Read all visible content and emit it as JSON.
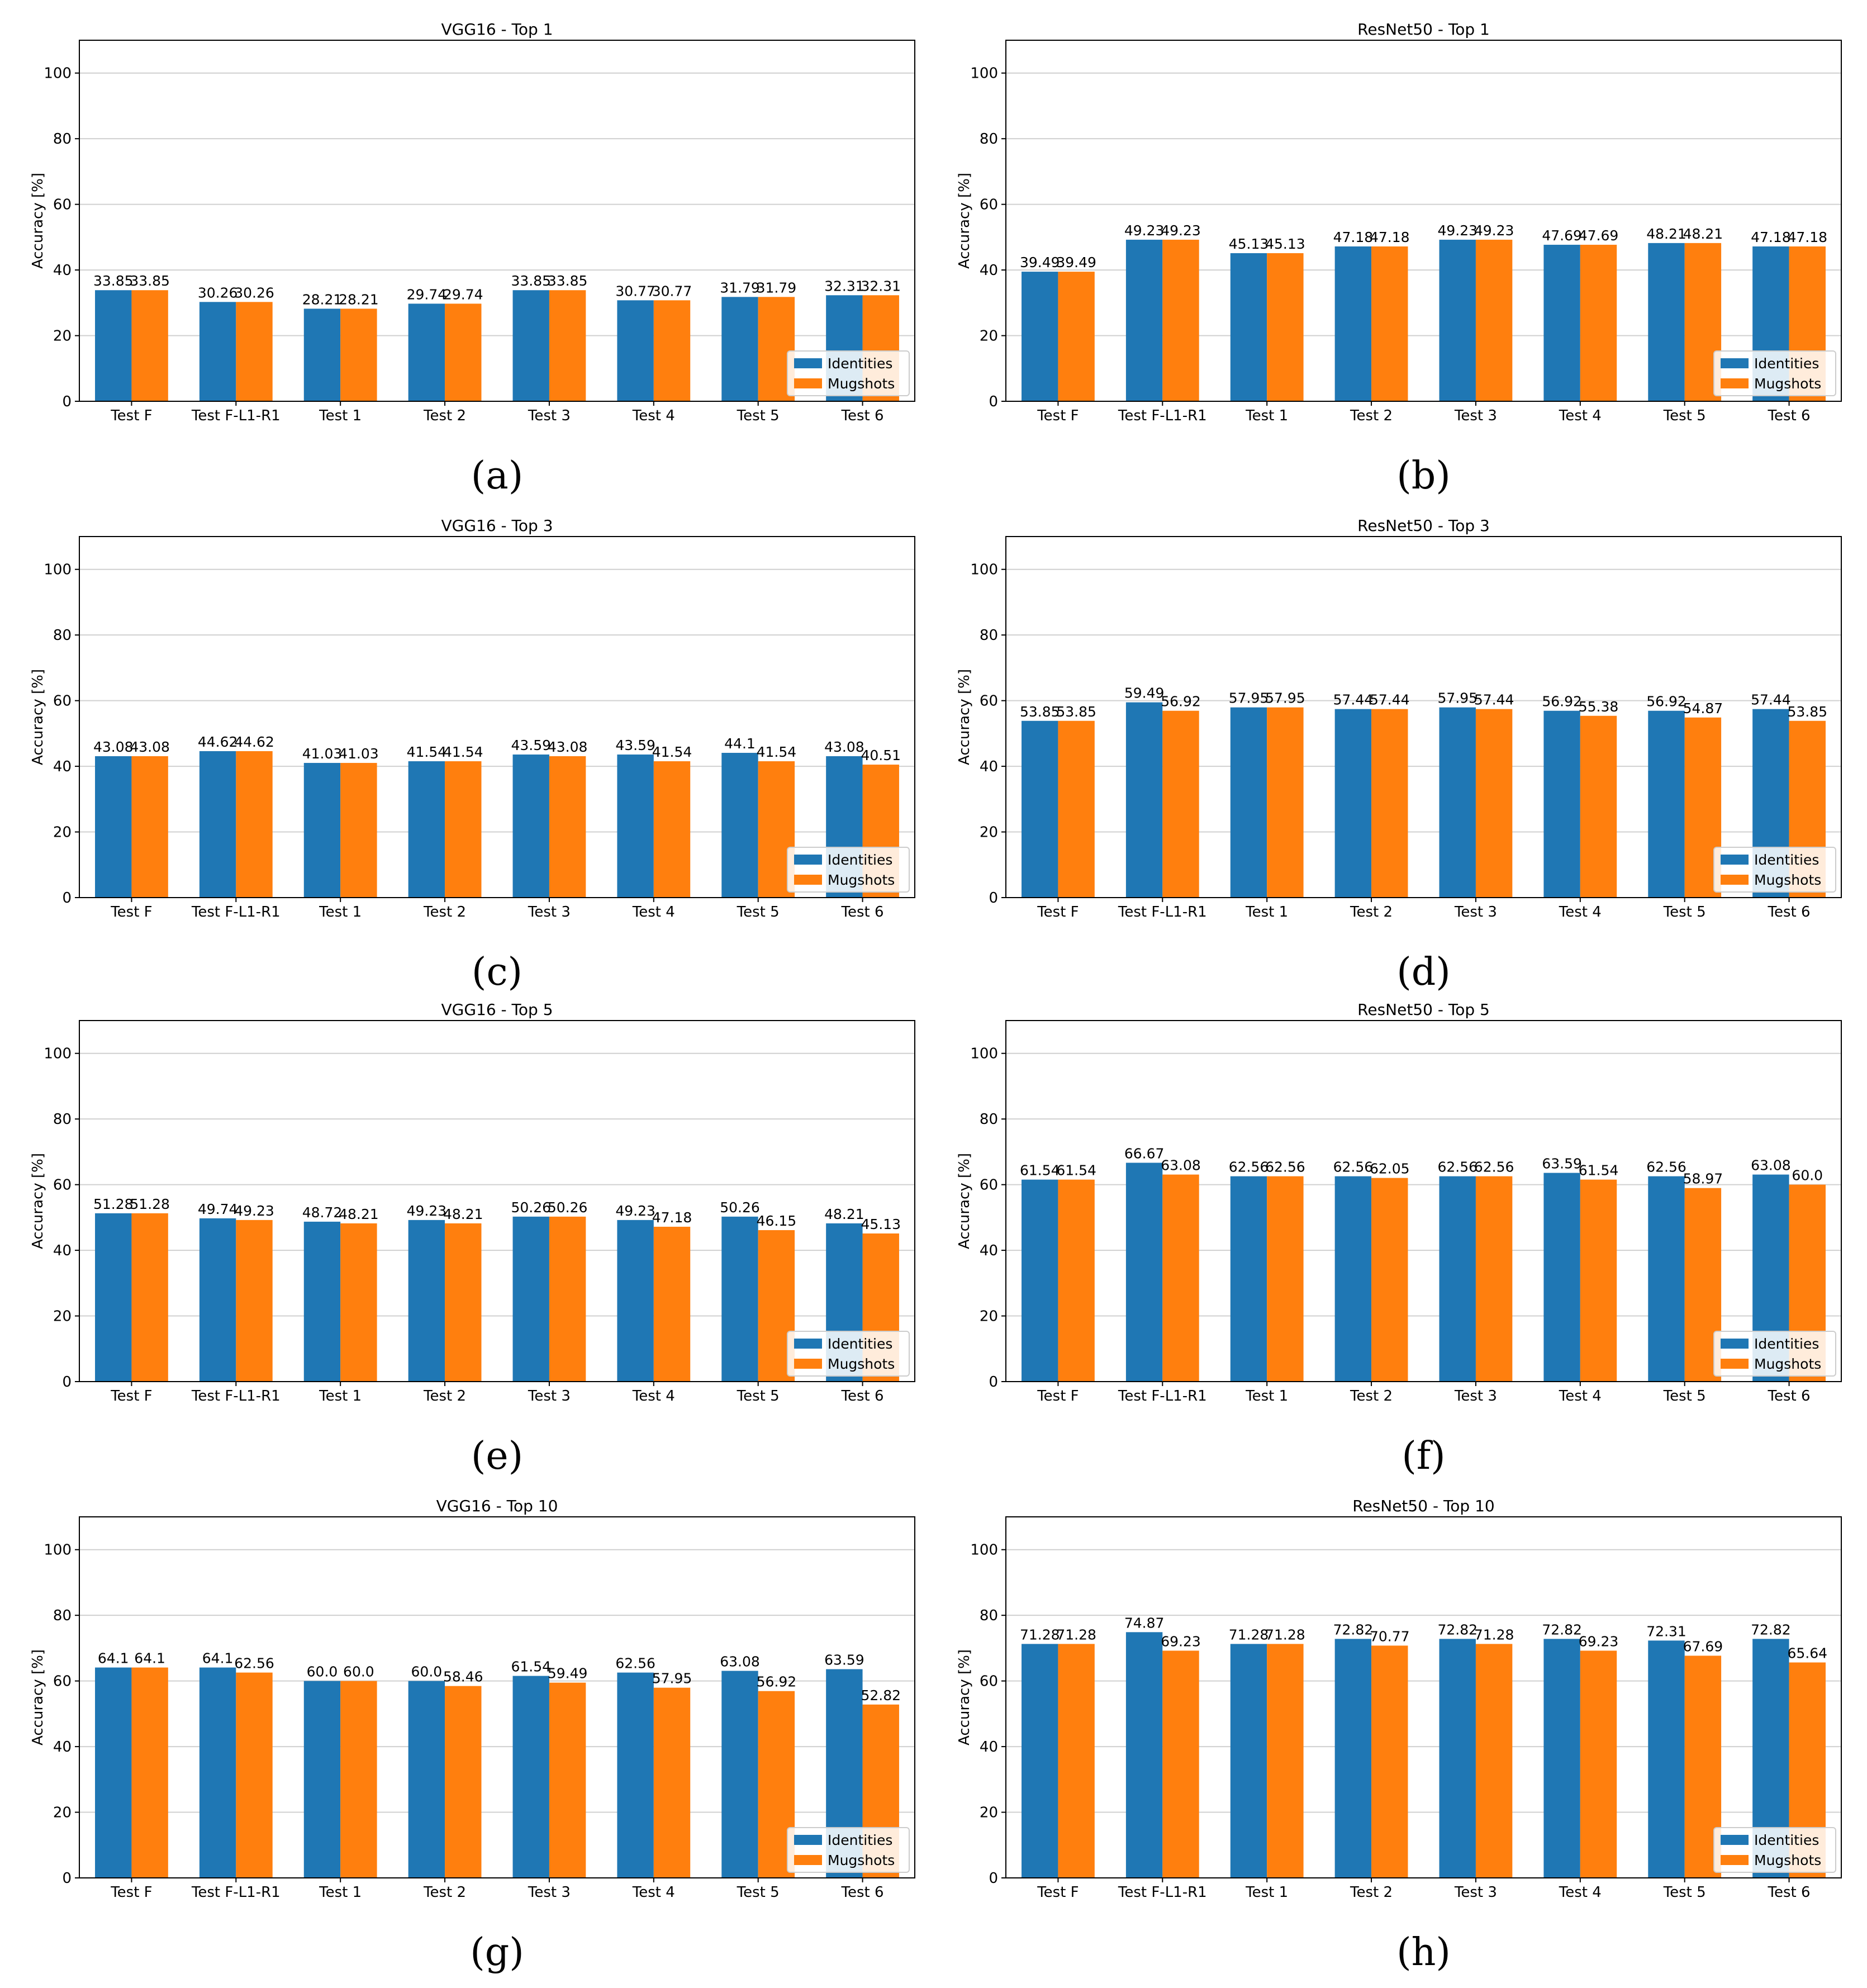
{
  "legend": {
    "identities": "Identities",
    "mugshots": "Mugshots"
  },
  "colors": {
    "identities": "#1f77b4",
    "mugshots": "#ff7f0e",
    "grid": "#d0d0d0"
  },
  "chart_data": [
    {
      "type": "bar",
      "caption": "(a)",
      "title": "VGG16 - Top 1",
      "xlabel": "",
      "ylabel": "Accuracy [%]",
      "ylim": [
        0,
        110
      ],
      "yticks": [
        0,
        20,
        40,
        60,
        80,
        100
      ],
      "grid": true,
      "legend_position": "lower-right",
      "categories": [
        "Test F",
        "Test F-L1-R1",
        "Test 1",
        "Test 2",
        "Test 3",
        "Test 4",
        "Test 5",
        "Test 6"
      ],
      "series": [
        {
          "name": "Identities",
          "values": [
            33.85,
            30.26,
            28.21,
            29.74,
            33.85,
            30.77,
            31.79,
            32.31
          ],
          "labels": [
            "33.85",
            "30.26",
            "28.21",
            "29.74",
            "33.85",
            "30.77",
            "31.79",
            "32.31"
          ]
        },
        {
          "name": "Mugshots",
          "values": [
            33.85,
            30.26,
            28.21,
            29.74,
            33.85,
            30.77,
            31.79,
            32.31
          ],
          "labels": [
            "33.85",
            "30.26",
            "28.21",
            "29.74",
            "33.85",
            "30.77",
            "31.79",
            "32.31"
          ]
        }
      ]
    },
    {
      "type": "bar",
      "caption": "(b)",
      "title": "ResNet50 - Top 1",
      "xlabel": "",
      "ylabel": "Accuracy [%]",
      "ylim": [
        0,
        110
      ],
      "yticks": [
        0,
        20,
        40,
        60,
        80,
        100
      ],
      "grid": true,
      "legend_position": "lower-right",
      "categories": [
        "Test F",
        "Test F-L1-R1",
        "Test 1",
        "Test 2",
        "Test 3",
        "Test 4",
        "Test 5",
        "Test 6"
      ],
      "series": [
        {
          "name": "Identities",
          "values": [
            39.49,
            49.23,
            45.13,
            47.18,
            49.23,
            47.69,
            48.21,
            47.18
          ],
          "labels": [
            "39.49",
            "49.23",
            "45.13",
            "47.18",
            "49.23",
            "47.69",
            "48.21",
            "47.18"
          ]
        },
        {
          "name": "Mugshots",
          "values": [
            39.49,
            49.23,
            45.13,
            47.18,
            49.23,
            47.69,
            48.21,
            47.18
          ],
          "labels": [
            "39.49",
            "49.23",
            "45.13",
            "47.18",
            "49.23",
            "47.69",
            "48.21",
            "47.18"
          ]
        }
      ]
    },
    {
      "type": "bar",
      "caption": "(c)",
      "title": "VGG16 - Top 3",
      "xlabel": "",
      "ylabel": "Accuracy [%]",
      "ylim": [
        0,
        110
      ],
      "yticks": [
        0,
        20,
        40,
        60,
        80,
        100
      ],
      "grid": true,
      "legend_position": "lower-right",
      "categories": [
        "Test F",
        "Test F-L1-R1",
        "Test 1",
        "Test 2",
        "Test 3",
        "Test 4",
        "Test 5",
        "Test 6"
      ],
      "series": [
        {
          "name": "Identities",
          "values": [
            43.08,
            44.62,
            41.03,
            41.54,
            43.59,
            43.59,
            44.1,
            43.08
          ],
          "labels": [
            "43.08",
            "44.62",
            "41.03",
            "41.54",
            "43.59",
            "43.59",
            "44.1",
            "43.08"
          ]
        },
        {
          "name": "Mugshots",
          "values": [
            43.08,
            44.62,
            41.03,
            41.54,
            43.08,
            41.54,
            41.54,
            40.51
          ],
          "labels": [
            "43.08",
            "44.62",
            "41.03",
            "41.54",
            "43.08",
            "41.54",
            "41.54",
            "40.51"
          ]
        }
      ]
    },
    {
      "type": "bar",
      "caption": "(d)",
      "title": "ResNet50 - Top 3",
      "xlabel": "",
      "ylabel": "Accuracy [%]",
      "ylim": [
        0,
        110
      ],
      "yticks": [
        0,
        20,
        40,
        60,
        80,
        100
      ],
      "grid": true,
      "legend_position": "lower-right",
      "categories": [
        "Test F",
        "Test F-L1-R1",
        "Test 1",
        "Test 2",
        "Test 3",
        "Test 4",
        "Test 5",
        "Test 6"
      ],
      "series": [
        {
          "name": "Identities",
          "values": [
            53.85,
            59.49,
            57.95,
            57.44,
            57.95,
            56.92,
            56.92,
            57.44
          ],
          "labels": [
            "53.85",
            "59.49",
            "57.95",
            "57.44",
            "57.95",
            "56.92",
            "56.92",
            "57.44"
          ]
        },
        {
          "name": "Mugshots",
          "values": [
            53.85,
            56.92,
            57.95,
            57.44,
            57.44,
            55.38,
            54.87,
            53.85
          ],
          "labels": [
            "53.85",
            "56.92",
            "57.95",
            "57.44",
            "57.44",
            "55.38",
            "54.87",
            "53.85"
          ]
        }
      ]
    },
    {
      "type": "bar",
      "caption": "(e)",
      "title": "VGG16 - Top 5",
      "xlabel": "",
      "ylabel": "Accuracy [%]",
      "ylim": [
        0,
        110
      ],
      "yticks": [
        0,
        20,
        40,
        60,
        80,
        100
      ],
      "grid": true,
      "legend_position": "lower-right",
      "categories": [
        "Test F",
        "Test F-L1-R1",
        "Test 1",
        "Test 2",
        "Test 3",
        "Test 4",
        "Test 5",
        "Test 6"
      ],
      "series": [
        {
          "name": "Identities",
          "values": [
            51.28,
            49.74,
            48.72,
            49.23,
            50.26,
            49.23,
            50.26,
            48.21
          ],
          "labels": [
            "51.28",
            "49.74",
            "48.72",
            "49.23",
            "50.26",
            "49.23",
            "50.26",
            "48.21"
          ]
        },
        {
          "name": "Mugshots",
          "values": [
            51.28,
            49.23,
            48.21,
            48.21,
            50.26,
            47.18,
            46.15,
            45.13
          ],
          "labels": [
            "51.28",
            "49.23",
            "48.21",
            "48.21",
            "50.26",
            "47.18",
            "46.15",
            "45.13"
          ]
        }
      ]
    },
    {
      "type": "bar",
      "caption": "(f)",
      "title": "ResNet50 - Top 5",
      "xlabel": "",
      "ylabel": "Accuracy [%]",
      "ylim": [
        0,
        110
      ],
      "yticks": [
        0,
        20,
        40,
        60,
        80,
        100
      ],
      "grid": true,
      "legend_position": "lower-right",
      "categories": [
        "Test F",
        "Test F-L1-R1",
        "Test 1",
        "Test 2",
        "Test 3",
        "Test 4",
        "Test 5",
        "Test 6"
      ],
      "series": [
        {
          "name": "Identities",
          "values": [
            61.54,
            66.67,
            62.56,
            62.56,
            62.56,
            63.59,
            62.56,
            63.08
          ],
          "labels": [
            "61.54",
            "66.67",
            "62.56",
            "62.56",
            "62.56",
            "63.59",
            "62.56",
            "63.08"
          ]
        },
        {
          "name": "Mugshots",
          "values": [
            61.54,
            63.08,
            62.56,
            62.05,
            62.56,
            61.54,
            58.97,
            60.0
          ],
          "labels": [
            "61.54",
            "63.08",
            "62.56",
            "62.05",
            "62.56",
            "61.54",
            "58.97",
            "60.0"
          ]
        }
      ]
    },
    {
      "type": "bar",
      "caption": "(g)",
      "title": "VGG16 - Top 10",
      "xlabel": "",
      "ylabel": "Accuracy [%]",
      "ylim": [
        0,
        110
      ],
      "yticks": [
        0,
        20,
        40,
        60,
        80,
        100
      ],
      "grid": true,
      "legend_position": "lower-right",
      "categories": [
        "Test F",
        "Test F-L1-R1",
        "Test 1",
        "Test 2",
        "Test 3",
        "Test 4",
        "Test 5",
        "Test 6"
      ],
      "series": [
        {
          "name": "Identities",
          "values": [
            64.1,
            64.1,
            60.0,
            60.0,
            61.54,
            62.56,
            63.08,
            63.59
          ],
          "labels": [
            "64.1",
            "64.1",
            "60.0",
            "60.0",
            "61.54",
            "62.56",
            "63.08",
            "63.59"
          ]
        },
        {
          "name": "Mugshots",
          "values": [
            64.1,
            62.56,
            60.0,
            58.46,
            59.49,
            57.95,
            56.92,
            52.82
          ],
          "labels": [
            "64.1",
            "62.56",
            "60.0",
            "58.46",
            "59.49",
            "57.95",
            "56.92",
            "52.82"
          ]
        }
      ]
    },
    {
      "type": "bar",
      "caption": "(h)",
      "title": "ResNet50 - Top 10",
      "xlabel": "",
      "ylabel": "Accuracy [%]",
      "ylim": [
        0,
        110
      ],
      "yticks": [
        0,
        20,
        40,
        60,
        80,
        100
      ],
      "grid": true,
      "legend_position": "lower-right",
      "categories": [
        "Test F",
        "Test F-L1-R1",
        "Test 1",
        "Test 2",
        "Test 3",
        "Test 4",
        "Test 5",
        "Test 6"
      ],
      "series": [
        {
          "name": "Identities",
          "values": [
            71.28,
            74.87,
            71.28,
            72.82,
            72.82,
            72.82,
            72.31,
            72.82
          ],
          "labels": [
            "71.28",
            "74.87",
            "71.28",
            "72.82",
            "72.82",
            "72.82",
            "72.31",
            "72.82"
          ]
        },
        {
          "name": "Mugshots",
          "values": [
            71.28,
            69.23,
            71.28,
            70.77,
            71.28,
            69.23,
            67.69,
            65.64
          ],
          "labels": [
            "71.28",
            "69.23",
            "71.28",
            "70.77",
            "71.28",
            "69.23",
            "67.69",
            "65.64"
          ]
        }
      ]
    }
  ]
}
